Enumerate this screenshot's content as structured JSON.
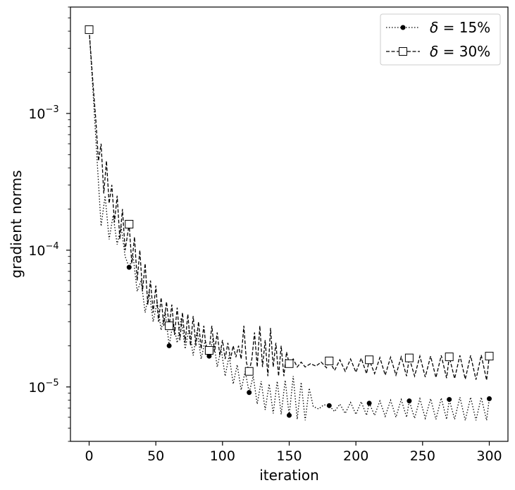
{
  "chart_data": {
    "type": "line",
    "xlabel": "iteration",
    "ylabel": "gradient norms",
    "xlim": [
      -14,
      314
    ],
    "ylim": [
      4e-06,
      0.006
    ],
    "yscale": "log",
    "x_ticks": [
      0,
      50,
      100,
      150,
      200,
      250,
      300
    ],
    "y_ticks": [
      {
        "value": 1e-05,
        "base": "10",
        "exp": "−5"
      },
      {
        "value": 0.0001,
        "base": "10",
        "exp": "−4"
      },
      {
        "value": 0.001,
        "base": "10",
        "exp": "−3"
      }
    ],
    "grid": false,
    "legend": {
      "position": "top-right"
    },
    "series": [
      {
        "name": "δ = 15%",
        "name_parts": {
          "symbol": "δ",
          "rest": " = 15%"
        },
        "line_style": "dotted",
        "marker": "filled-circle",
        "color": "#000000",
        "marker_points": [
          [
            0,
            0.0041
          ],
          [
            30,
            7.5e-05
          ],
          [
            60,
            2e-05
          ],
          [
            90,
            1.68e-05
          ],
          [
            120,
            9.1e-06
          ],
          [
            150,
            6.2e-06
          ],
          [
            180,
            7.3e-06
          ],
          [
            210,
            7.6e-06
          ],
          [
            240,
            7.9e-06
          ],
          [
            270,
            8.1e-06
          ],
          [
            300,
            8.2e-06
          ]
        ],
        "values": [
          [
            0,
            0.0041
          ],
          [
            3,
            0.0014
          ],
          [
            6,
            0.00045
          ],
          [
            9,
            0.00015
          ],
          [
            12,
            0.00025
          ],
          [
            15,
            0.00012
          ],
          [
            18,
            0.00018
          ],
          [
            21,
            0.00011
          ],
          [
            24,
            0.00015
          ],
          [
            27,
            9e-05
          ],
          [
            30,
            7.5e-05
          ],
          [
            33,
            9e-05
          ],
          [
            36,
            5e-05
          ],
          [
            39,
            6e-05
          ],
          [
            42,
            3.5e-05
          ],
          [
            45,
            5e-05
          ],
          [
            48,
            3e-05
          ],
          [
            51,
            4.2e-05
          ],
          [
            54,
            2.6e-05
          ],
          [
            57,
            3.6e-05
          ],
          [
            60,
            2e-05
          ],
          [
            63,
            3e-05
          ],
          [
            66,
            2.1e-05
          ],
          [
            69,
            3.2e-05
          ],
          [
            72,
            1.9e-05
          ],
          [
            75,
            2.7e-05
          ],
          [
            78,
            1.7e-05
          ],
          [
            81,
            2.6e-05
          ],
          [
            84,
            1.6e-05
          ],
          [
            87,
            2.2e-05
          ],
          [
            90,
            1.68e-05
          ],
          [
            93,
            2.3e-05
          ],
          [
            96,
            1.4e-05
          ],
          [
            99,
            1.9e-05
          ],
          [
            102,
            1.2e-05
          ],
          [
            105,
            1.7e-05
          ],
          [
            108,
            1.05e-05
          ],
          [
            111,
            1.45e-05
          ],
          [
            114,
            9.5e-06
          ],
          [
            117,
            1.3e-05
          ],
          [
            120,
            9.1e-06
          ],
          [
            123,
            1.2e-05
          ],
          [
            126,
            7.5e-06
          ],
          [
            129,
            1.1e-05
          ],
          [
            132,
            6.8e-06
          ],
          [
            135,
            1.05e-05
          ],
          [
            138,
            6.4e-06
          ],
          [
            141,
            1.1e-05
          ],
          [
            144,
            6.3e-06
          ],
          [
            147,
            1.12e-05
          ],
          [
            150,
            6.2e-06
          ],
          [
            153,
            1.2e-05
          ],
          [
            156,
            5.8e-06
          ],
          [
            159,
            1.08e-05
          ],
          [
            162,
            5.7e-06
          ],
          [
            165,
            9.8e-06
          ],
          [
            168,
            7.2e-06
          ],
          [
            172,
            6.9e-06
          ],
          [
            176,
            7.4e-06
          ],
          [
            180,
            7.3e-06
          ],
          [
            184,
            6.6e-06
          ],
          [
            188,
            7.5e-06
          ],
          [
            192,
            6.4e-06
          ],
          [
            196,
            7.7e-06
          ],
          [
            200,
            6.3e-06
          ],
          [
            204,
            7.8e-06
          ],
          [
            208,
            6.2e-06
          ],
          [
            210,
            7.6e-06
          ],
          [
            214,
            6.2e-06
          ],
          [
            218,
            7.9e-06
          ],
          [
            222,
            6.1e-06
          ],
          [
            226,
            8e-06
          ],
          [
            230,
            6e-06
          ],
          [
            234,
            8.1e-06
          ],
          [
            238,
            6e-06
          ],
          [
            240,
            7.9e-06
          ],
          [
            244,
            5.9e-06
          ],
          [
            248,
            8.2e-06
          ],
          [
            252,
            5.9e-06
          ],
          [
            256,
            8.2e-06
          ],
          [
            260,
            5.8e-06
          ],
          [
            264,
            8.3e-06
          ],
          [
            268,
            5.8e-06
          ],
          [
            270,
            8.1e-06
          ],
          [
            274,
            5.8e-06
          ],
          [
            278,
            8.4e-06
          ],
          [
            282,
            5.7e-06
          ],
          [
            286,
            8.4e-06
          ],
          [
            290,
            5.7e-06
          ],
          [
            294,
            8.4e-06
          ],
          [
            298,
            5.7e-06
          ],
          [
            300,
            8.2e-06
          ]
        ]
      },
      {
        "name": "δ = 30%",
        "name_parts": {
          "symbol": "δ",
          "rest": " = 30%"
        },
        "line_style": "dashed",
        "marker": "open-square",
        "color": "#000000",
        "marker_points": [
          [
            0,
            0.0041
          ],
          [
            30,
            0.000155
          ],
          [
            60,
            2.8e-05
          ],
          [
            90,
            1.85e-05
          ],
          [
            120,
            1.3e-05
          ],
          [
            150,
            1.48e-05
          ],
          [
            180,
            1.55e-05
          ],
          [
            210,
            1.58e-05
          ],
          [
            240,
            1.63e-05
          ],
          [
            270,
            1.66e-05
          ],
          [
            300,
            1.68e-05
          ]
        ],
        "values": [
          [
            0,
            0.0041
          ],
          [
            3,
            0.0016
          ],
          [
            5,
            0.0009
          ],
          [
            7,
            0.00045
          ],
          [
            9,
            0.0006
          ],
          [
            11,
            0.00026
          ],
          [
            13,
            0.00045
          ],
          [
            15,
            0.00022
          ],
          [
            17,
            0.0003
          ],
          [
            19,
            0.00016
          ],
          [
            21,
            0.00025
          ],
          [
            23,
            0.00012
          ],
          [
            25,
            0.0002
          ],
          [
            27,
            0.0001
          ],
          [
            30,
            0.000155
          ],
          [
            32,
            8e-05
          ],
          [
            34,
            0.000125
          ],
          [
            36,
            6e-05
          ],
          [
            38,
            0.0001
          ],
          [
            40,
            5e-05
          ],
          [
            42,
            8e-05
          ],
          [
            44,
            4e-05
          ],
          [
            46,
            6e-05
          ],
          [
            48,
            3.5e-05
          ],
          [
            50,
            5.5e-05
          ],
          [
            52,
            3e-05
          ],
          [
            54,
            4.5e-05
          ],
          [
            56,
            2.8e-05
          ],
          [
            58,
            4.2e-05
          ],
          [
            60,
            2.8e-05
          ],
          [
            62,
            4e-05
          ],
          [
            64,
            2.4e-05
          ],
          [
            66,
            3.8e-05
          ],
          [
            68,
            2.2e-05
          ],
          [
            70,
            3.5e-05
          ],
          [
            72,
            2.1e-05
          ],
          [
            74,
            3.4e-05
          ],
          [
            76,
            2e-05
          ],
          [
            78,
            3.3e-05
          ],
          [
            80,
            2e-05
          ],
          [
            82,
            3e-05
          ],
          [
            84,
            1.9e-05
          ],
          [
            86,
            2.8e-05
          ],
          [
            88,
            1.8e-05
          ],
          [
            90,
            1.85e-05
          ],
          [
            92,
            2.8e-05
          ],
          [
            94,
            1.8e-05
          ],
          [
            96,
            2.5e-05
          ],
          [
            98,
            1.7e-05
          ],
          [
            100,
            2.2e-05
          ],
          [
            102,
            1.6e-05
          ],
          [
            104,
            2.1e-05
          ],
          [
            106,
            1.6e-05
          ],
          [
            108,
            2e-05
          ],
          [
            110,
            1.65e-05
          ],
          [
            112,
            2e-05
          ],
          [
            114,
            1.6e-05
          ],
          [
            116,
            2.8e-05
          ],
          [
            118,
            1.5e-05
          ],
          [
            120,
            1.3e-05
          ],
          [
            122,
            1.6e-05
          ],
          [
            124,
            2.5e-05
          ],
          [
            126,
            1.4e-05
          ],
          [
            128,
            2.8e-05
          ],
          [
            130,
            1.4e-05
          ],
          [
            132,
            2.2e-05
          ],
          [
            134,
            1.2e-05
          ],
          [
            136,
            2.7e-05
          ],
          [
            138,
            1.4e-05
          ],
          [
            140,
            2.1e-05
          ],
          [
            142,
            1.2e-05
          ],
          [
            144,
            2e-05
          ],
          [
            146,
            1.2e-05
          ],
          [
            148,
            1.8e-05
          ],
          [
            150,
            1.48e-05
          ],
          [
            153,
            1.6e-05
          ],
          [
            156,
            1.4e-05
          ],
          [
            159,
            1.52e-05
          ],
          [
            162,
            1.4e-05
          ],
          [
            166,
            1.48e-05
          ],
          [
            170,
            1.42e-05
          ],
          [
            174,
            1.52e-05
          ],
          [
            178,
            1.38e-05
          ],
          [
            180,
            1.55e-05
          ],
          [
            184,
            1.32e-05
          ],
          [
            188,
            1.58e-05
          ],
          [
            192,
            1.3e-05
          ],
          [
            196,
            1.6e-05
          ],
          [
            200,
            1.28e-05
          ],
          [
            204,
            1.62e-05
          ],
          [
            208,
            1.25e-05
          ],
          [
            210,
            1.58e-05
          ],
          [
            214,
            1.25e-05
          ],
          [
            218,
            1.64e-05
          ],
          [
            222,
            1.22e-05
          ],
          [
            226,
            1.65e-05
          ],
          [
            230,
            1.22e-05
          ],
          [
            234,
            1.66e-05
          ],
          [
            238,
            1.2e-05
          ],
          [
            240,
            1.63e-05
          ],
          [
            244,
            1.2e-05
          ],
          [
            248,
            1.68e-05
          ],
          [
            252,
            1.18e-05
          ],
          [
            256,
            1.68e-05
          ],
          [
            260,
            1.17e-05
          ],
          [
            264,
            1.7e-05
          ],
          [
            268,
            1.16e-05
          ],
          [
            270,
            1.66e-05
          ],
          [
            274,
            1.15e-05
          ],
          [
            278,
            1.7e-05
          ],
          [
            282,
            1.14e-05
          ],
          [
            286,
            1.7e-05
          ],
          [
            290,
            1.13e-05
          ],
          [
            294,
            1.71e-05
          ],
          [
            298,
            1.12e-05
          ],
          [
            300,
            1.68e-05
          ]
        ]
      }
    ]
  }
}
